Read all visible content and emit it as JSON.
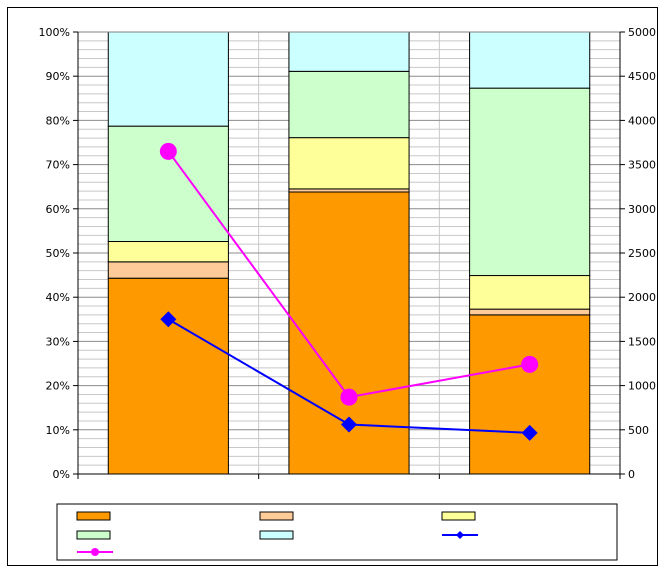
{
  "chart_data": {
    "type": "bar",
    "stacking": "percent",
    "categories": [
      "",
      "",
      ""
    ],
    "title": "",
    "xlabel": "",
    "ylabel": "",
    "ylim": [
      0,
      100
    ],
    "y2lim": [
      0,
      5000
    ],
    "y_ticks": [
      "0%",
      "10%",
      "20%",
      "30%",
      "40%",
      "50%",
      "60%",
      "70%",
      "80%",
      "90%",
      "100%"
    ],
    "y2_ticks": [
      "0",
      "500",
      "1000",
      "1500",
      "2000",
      "2500",
      "3000",
      "3500",
      "4000",
      "4500",
      "5000"
    ],
    "grid": true,
    "legend_position": "bottom",
    "series": [
      {
        "kind": "bar",
        "axis": "left",
        "color": "#FF9900",
        "values": [
          44.3,
          63.8,
          36.0
        ]
      },
      {
        "kind": "bar",
        "axis": "left",
        "color": "#FFCC99",
        "values": [
          3.7,
          0.7,
          1.3
        ]
      },
      {
        "kind": "bar",
        "axis": "left",
        "color": "#FFFF99",
        "values": [
          4.6,
          11.6,
          7.6
        ]
      },
      {
        "kind": "bar",
        "axis": "left",
        "color": "#CCFFCC",
        "values": [
          26.1,
          15.0,
          42.4
        ]
      },
      {
        "kind": "bar",
        "axis": "left",
        "color": "#CCFFFF",
        "values": [
          21.3,
          8.9,
          12.7
        ]
      },
      {
        "kind": "line",
        "axis": "right",
        "color": "#0000FF",
        "marker": "diamond",
        "values": [
          1750,
          560,
          465
        ]
      },
      {
        "kind": "line",
        "axis": "right",
        "color": "#FF00FF",
        "marker": "circle",
        "values": [
          3650,
          870,
          1240
        ]
      }
    ]
  }
}
